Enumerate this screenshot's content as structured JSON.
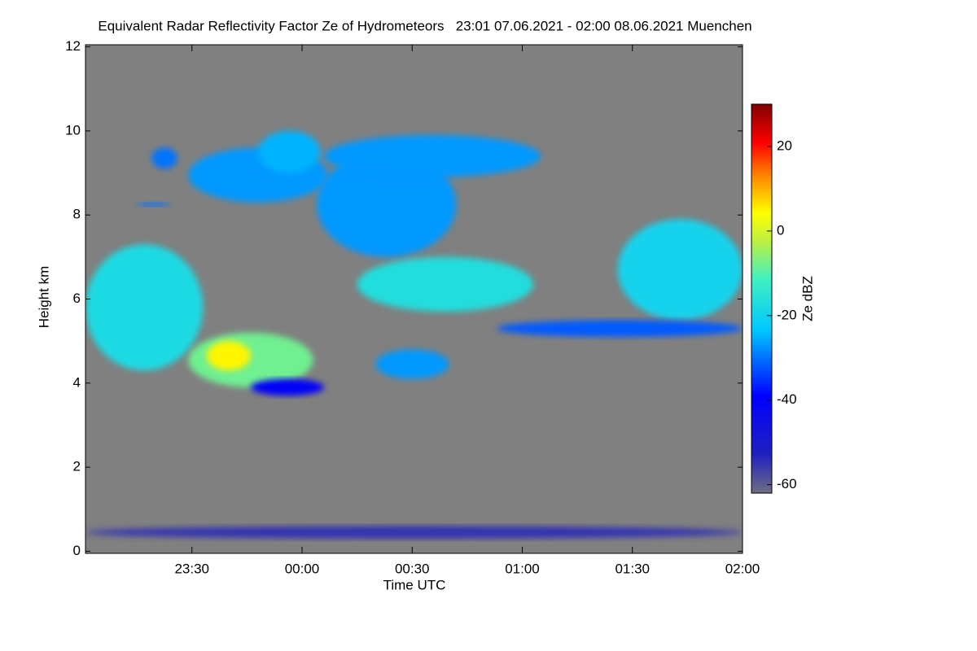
{
  "chart_data": {
    "type": "heatmap",
    "title": "Equivalent Radar Reflectivity Factor Ze of Hydrometeors   23:01 07.06.2021 - 02:00 08.06.2021 Muenchen",
    "x_label": "Time UTC",
    "y_label": "Height km",
    "colorbar_label": "Ze dBZ",
    "xlim": [
      1,
      180
    ],
    "xticks": [
      {
        "value": 30,
        "label": "23:30"
      },
      {
        "value": 60,
        "label": "00:00"
      },
      {
        "value": 90,
        "label": "00:30"
      },
      {
        "value": 120,
        "label": "01:00"
      },
      {
        "value": 150,
        "label": "01:30"
      },
      {
        "value": 180,
        "label": "02:00"
      }
    ],
    "ylim": [
      -0.05,
      12.05
    ],
    "yticks": [
      0,
      2,
      4,
      6,
      8,
      10,
      12
    ],
    "clim": [
      -62,
      30
    ],
    "cticks": [
      -60,
      -40,
      -20,
      0,
      20
    ],
    "background": "#808080",
    "cells": [
      {
        "x": [
          1,
          33
        ],
        "y": [
          4.3,
          7.3
        ],
        "ze": -18
      },
      {
        "x": [
          29,
          63
        ],
        "y": [
          3.9,
          5.2
        ],
        "ze": -8
      },
      {
        "x": [
          34,
          46
        ],
        "y": [
          4.3,
          5.0
        ],
        "ze": 5
      },
      {
        "x": [
          46,
          66
        ],
        "y": [
          3.7,
          4.1
        ],
        "ze": -40
      },
      {
        "x": [
          29,
          67
        ],
        "y": [
          8.3,
          9.6
        ],
        "ze": -27
      },
      {
        "x": [
          48,
          65
        ],
        "y": [
          9.0,
          10.0
        ],
        "ze": -25
      },
      {
        "x": [
          64,
          102
        ],
        "y": [
          7.0,
          9.5
        ],
        "ze": -27
      },
      {
        "x": [
          66,
          125
        ],
        "y": [
          8.9,
          9.9
        ],
        "ze": -27
      },
      {
        "x": [
          75,
          123
        ],
        "y": [
          5.7,
          7.0
        ],
        "ze": -17
      },
      {
        "x": [
          80,
          100
        ],
        "y": [
          4.1,
          4.8
        ],
        "ze": -27
      },
      {
        "x": [
          146,
          180
        ],
        "y": [
          5.5,
          7.9
        ],
        "ze": -20
      },
      {
        "x": [
          113,
          180
        ],
        "y": [
          5.1,
          5.5
        ],
        "ze": -32
      },
      {
        "x": [
          15,
          24
        ],
        "y": [
          8.2,
          8.3
        ],
        "ze": -30
      },
      {
        "x": [
          19,
          26
        ],
        "y": [
          9.1,
          9.6
        ],
        "ze": -30
      },
      {
        "x": [
          1,
          180
        ],
        "y": [
          0.3,
          0.6
        ],
        "ze": -55
      }
    ]
  }
}
